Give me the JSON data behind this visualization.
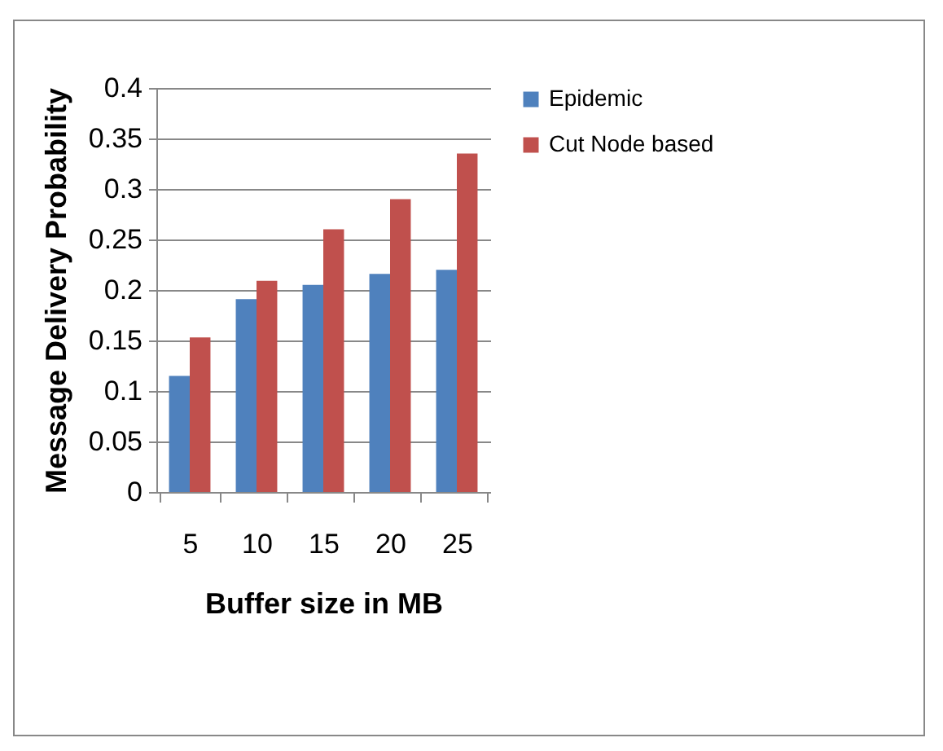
{
  "chart_data": {
    "type": "bar",
    "xlabel": "Buffer size in MB",
    "ylabel": "Message Delivery Probability",
    "categories": [
      "5",
      "10",
      "15",
      "20",
      "25"
    ],
    "series": [
      {
        "name": "Epidemic",
        "color": "#4f81bd",
        "values": [
          0.115,
          0.191,
          0.205,
          0.216,
          0.22
        ]
      },
      {
        "name": "Cut Node based",
        "color": "#c0504d",
        "values": [
          0.153,
          0.209,
          0.26,
          0.29,
          0.335
        ]
      }
    ],
    "ylim": [
      0,
      0.4
    ],
    "yticks": [
      0,
      0.05,
      0.1,
      0.15,
      0.2,
      0.25,
      0.3,
      0.35,
      0.4
    ],
    "grid": "y",
    "legend": "right"
  }
}
